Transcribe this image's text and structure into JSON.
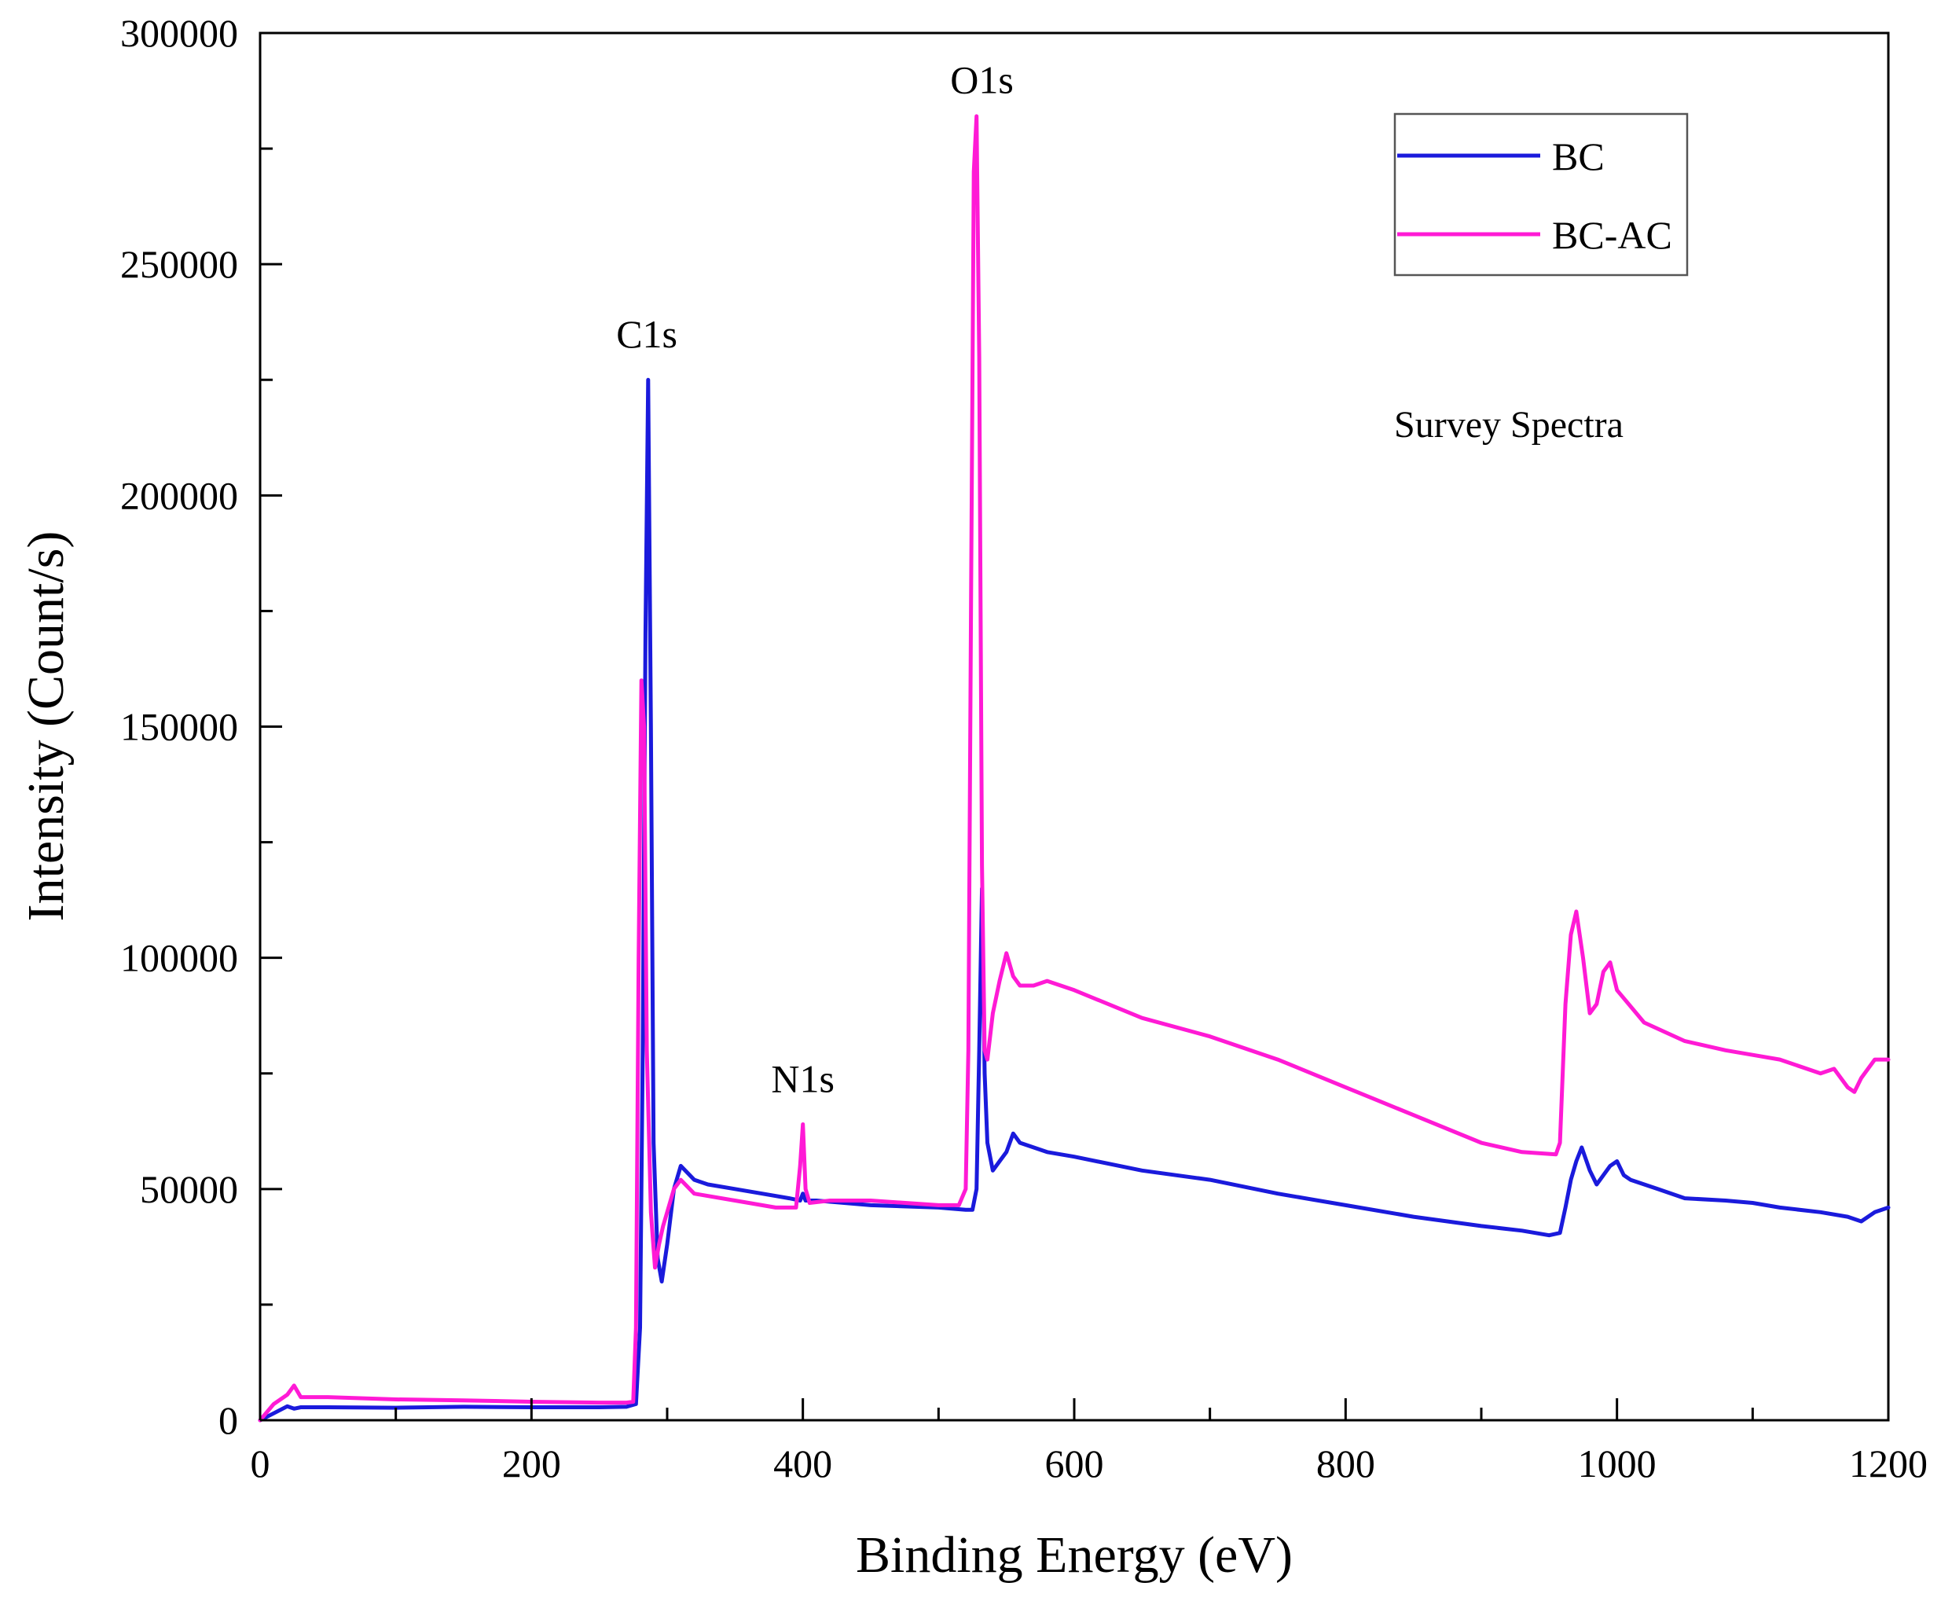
{
  "chart_data": {
    "type": "line",
    "title": "",
    "xlabel": "Binding Energy (eV)",
    "ylabel": "Intensity (Count/s)",
    "xlim": [
      0,
      1200
    ],
    "ylim": [
      0,
      300000
    ],
    "xticks": [
      0,
      200,
      400,
      600,
      800,
      1000,
      1200
    ],
    "xtick_labels": [
      "0",
      "200",
      "400",
      "600",
      "800",
      "1000",
      "1200"
    ],
    "yticks": [
      0,
      50000,
      100000,
      150000,
      200000,
      250000,
      300000
    ],
    "ytick_labels": [
      "0",
      "50000",
      "100000",
      "150000",
      "200000",
      "250000",
      "300000"
    ],
    "grid": false,
    "legend_position": "top-right",
    "annotation_text": "Survey Spectra",
    "peak_labels": [
      {
        "text": "C1s",
        "x": 285,
        "y": 232000
      },
      {
        "text": "N1s",
        "x": 400,
        "y": 71000
      },
      {
        "text": "O1s",
        "x": 532,
        "y": 287000
      }
    ],
    "series": [
      {
        "name": "BC",
        "color": "#1a1adc",
        "x": [
          0,
          10,
          20,
          25,
          30,
          50,
          100,
          150,
          200,
          250,
          270,
          277,
          280,
          282,
          284,
          286,
          288,
          290,
          293,
          296,
          300,
          305,
          310,
          320,
          330,
          350,
          370,
          390,
          398,
          400,
          402,
          410,
          450,
          500,
          520,
          525,
          528,
          530,
          532,
          534,
          536,
          540,
          545,
          550,
          555,
          560,
          570,
          580,
          600,
          650,
          700,
          750,
          800,
          850,
          900,
          930,
          950,
          958,
          962,
          966,
          970,
          974,
          980,
          985,
          990,
          995,
          1000,
          1005,
          1010,
          1030,
          1050,
          1080,
          1100,
          1120,
          1150,
          1170,
          1180,
          1190,
          1200
        ],
        "y": [
          0,
          1500,
          3000,
          2500,
          2800,
          2800,
          2700,
          2900,
          2800,
          2800,
          2900,
          3500,
          20000,
          80000,
          170000,
          225000,
          150000,
          60000,
          35000,
          30000,
          38000,
          50000,
          55000,
          52000,
          51000,
          50000,
          49000,
          48000,
          47500,
          49000,
          47500,
          47500,
          46500,
          46000,
          45500,
          45500,
          50000,
          80000,
          115000,
          75000,
          60000,
          54000,
          56000,
          58000,
          62000,
          60000,
          59000,
          58000,
          57000,
          54000,
          52000,
          49000,
          46500,
          44000,
          42000,
          41000,
          40000,
          40500,
          46000,
          52000,
          56000,
          59000,
          54000,
          51000,
          53000,
          55000,
          56000,
          53000,
          52000,
          50000,
          48000,
          47500,
          47000,
          46000,
          45000,
          44000,
          43000,
          45000,
          46000
        ]
      },
      {
        "name": "BC-AC",
        "color": "#ff1ad5",
        "x": [
          0,
          10,
          20,
          25,
          30,
          50,
          100,
          150,
          200,
          250,
          270,
          275,
          277,
          279,
          281,
          283,
          285,
          288,
          291,
          294,
          297,
          300,
          305,
          310,
          320,
          350,
          380,
          395,
          398,
          400,
          402,
          405,
          420,
          450,
          500,
          515,
          520,
          522,
          524,
          526,
          528,
          530,
          532,
          534,
          536,
          540,
          545,
          550,
          555,
          560,
          570,
          580,
          600,
          650,
          700,
          750,
          800,
          850,
          900,
          930,
          955,
          958,
          962,
          966,
          970,
          975,
          980,
          985,
          990,
          995,
          1000,
          1020,
          1050,
          1080,
          1100,
          1120,
          1150,
          1160,
          1170,
          1175,
          1180,
          1190,
          1200
        ],
        "y": [
          0,
          3500,
          5500,
          7500,
          5000,
          5000,
          4500,
          4300,
          4000,
          3800,
          3800,
          4000,
          20000,
          100000,
          160000,
          150000,
          80000,
          45000,
          33000,
          38000,
          42000,
          45000,
          50000,
          52000,
          49000,
          47500,
          46000,
          46000,
          55000,
          64000,
          50000,
          47000,
          47500,
          47500,
          46500,
          46500,
          50000,
          80000,
          180000,
          270000,
          282000,
          230000,
          120000,
          80000,
          78000,
          88000,
          95000,
          101000,
          96000,
          94000,
          94000,
          95000,
          93000,
          87000,
          83000,
          78000,
          72000,
          66000,
          60000,
          58000,
          57500,
          60000,
          90000,
          105000,
          110000,
          100000,
          88000,
          90000,
          97000,
          99000,
          93000,
          86000,
          82000,
          80000,
          79000,
          78000,
          75000,
          76000,
          72000,
          71000,
          74000,
          78000,
          78000
        ]
      }
    ]
  }
}
